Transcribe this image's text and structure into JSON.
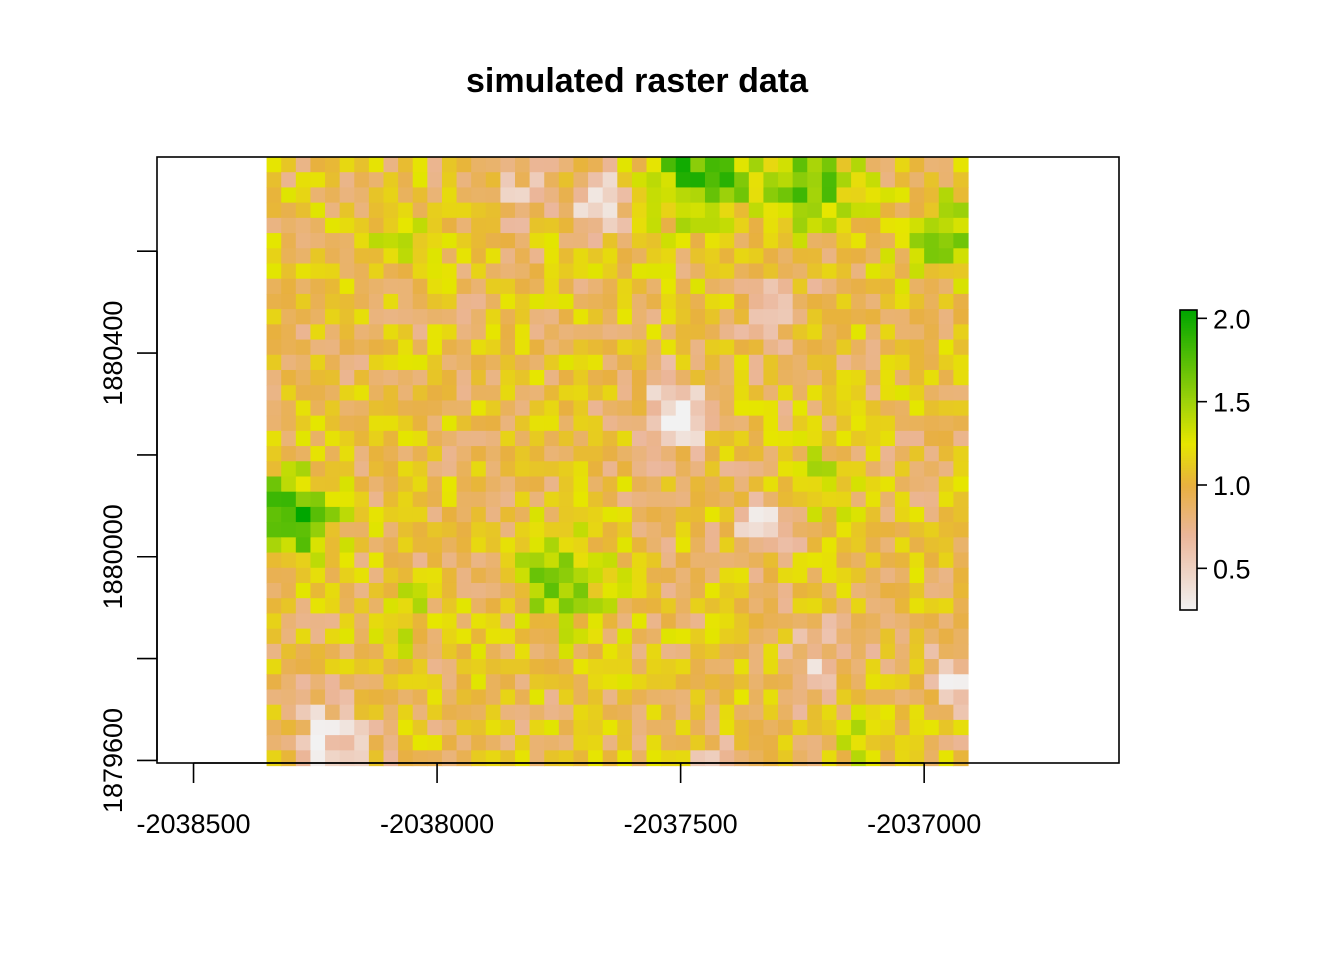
{
  "chart_data": {
    "type": "heatmap",
    "title": "simulated raster data",
    "xlabel": "",
    "ylabel": "",
    "xlim": [
      -2038575,
      -2036600
    ],
    "ylim": [
      1879595,
      1880785
    ],
    "raster_extent": {
      "xmin": -2038350,
      "xmax": -2036910,
      "ymin": 1879590,
      "ymax": 1880785
    },
    "raster_dims": {
      "ncol": 48,
      "nrow": 40
    },
    "value_range": [
      0.25,
      2.05
    ],
    "x_ticks": [
      -2038500,
      -2038000,
      -2037500,
      -2037000
    ],
    "x_tick_labels": [
      "-2038500",
      "-2038000",
      "-2037500",
      "-2037000"
    ],
    "y_ticks": [
      1879600,
      1879800,
      1880000,
      1880200,
      1880400,
      1880600
    ],
    "y_tick_labels": [
      "1879600",
      "",
      "1880000",
      "",
      "1880400",
      ""
    ],
    "legend": {
      "position": "right",
      "ticks": [
        0.5,
        1.0,
        1.5,
        2.0
      ],
      "labels": [
        "0.5",
        "1.0",
        "1.5",
        "2.0"
      ]
    },
    "color_scale": [
      {
        "v": 0.25,
        "color": "#f2f2f2"
      },
      {
        "v": 0.7,
        "color": "#ebb69a"
      },
      {
        "v": 1.0,
        "color": "#e8b040"
      },
      {
        "v": 1.25,
        "color": "#e6e600"
      },
      {
        "v": 1.5,
        "color": "#9fd20a"
      },
      {
        "v": 2.05,
        "color": "#00a600"
      }
    ],
    "features": [
      {
        "x": -2037460,
        "y": 1880760,
        "r": 110,
        "a": 0.85
      },
      {
        "x": -2037230,
        "y": 1880740,
        "r": 90,
        "a": 0.7
      },
      {
        "x": -2036960,
        "y": 1880630,
        "r": 80,
        "a": 0.55
      },
      {
        "x": -2038300,
        "y": 1880080,
        "r": 85,
        "a": 0.9
      },
      {
        "x": -2037740,
        "y": 1879950,
        "r": 90,
        "a": 0.65
      },
      {
        "x": -2037230,
        "y": 1880140,
        "r": 70,
        "a": 0.45
      },
      {
        "x": -2038070,
        "y": 1879880,
        "r": 60,
        "a": 0.4
      },
      {
        "x": -2038060,
        "y": 1880630,
        "r": 70,
        "a": 0.35
      },
      {
        "x": -2037110,
        "y": 1879660,
        "r": 60,
        "a": 0.45
      },
      {
        "x": -2037660,
        "y": 1880700,
        "r": 60,
        "a": -0.7
      },
      {
        "x": -2037510,
        "y": 1880280,
        "r": 70,
        "a": -0.8
      },
      {
        "x": -2037320,
        "y": 1880060,
        "r": 55,
        "a": -0.8
      },
      {
        "x": -2038220,
        "y": 1879640,
        "r": 80,
        "a": -0.6
      },
      {
        "x": -2037220,
        "y": 1879790,
        "r": 75,
        "a": -0.4
      },
      {
        "x": -2036940,
        "y": 1879760,
        "r": 60,
        "a": -0.5
      },
      {
        "x": -2037310,
        "y": 1880470,
        "r": 70,
        "a": -0.35
      },
      {
        "x": -2037840,
        "y": 1880720,
        "r": 60,
        "a": -0.4
      },
      {
        "x": -2037430,
        "y": 1879600,
        "r": 50,
        "a": -0.35
      }
    ]
  }
}
